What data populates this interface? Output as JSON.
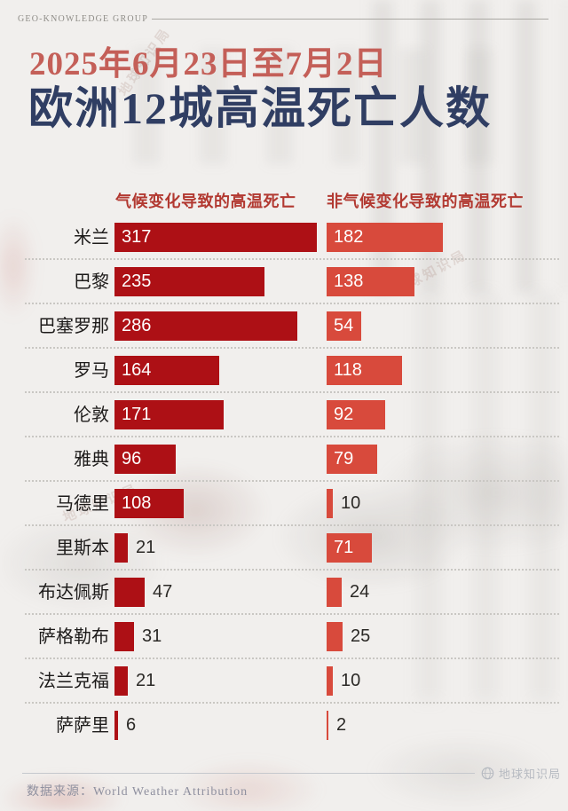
{
  "brand": {
    "name": "GEO-KNOWLEDGE GROUP"
  },
  "title": {
    "date_line": "2025年6月23日至7月2日",
    "main_line": "欧洲12城高温死亡人数"
  },
  "chart_data": {
    "type": "bar",
    "orientation": "horizontal",
    "title": "欧洲12城高温死亡人数",
    "subtitle": "2025年6月23日至7月2日",
    "categories": [
      "米兰",
      "巴黎",
      "巴塞罗那",
      "罗马",
      "伦敦",
      "雅典",
      "马德里",
      "里斯本",
      "布达佩斯",
      "萨格勒布",
      "法兰克福",
      "萨萨里"
    ],
    "series": [
      {
        "name": "气候变化导致的高温死亡",
        "color": "#ad1015",
        "values": [
          317,
          235,
          286,
          164,
          171,
          96,
          108,
          21,
          47,
          31,
          21,
          6
        ]
      },
      {
        "name": "非气候变化导致的高温死亡",
        "color": "#d84a3c",
        "values": [
          182,
          138,
          54,
          118,
          92,
          79,
          10,
          71,
          24,
          25,
          10,
          2
        ]
      }
    ],
    "value_labels": "shown at bar start, moved outside bar when bar is too short",
    "grid": false,
    "legend_position": "top-as-column-headers",
    "xlim": [
      0,
      330
    ]
  },
  "watermark": {
    "text": "地球知识局"
  },
  "footer": {
    "source_label": "数据来源：World Weather Attribution",
    "publisher": "地球知识局",
    "logo": "globe-icon"
  },
  "colors": {
    "background": "#f1efed",
    "bar_climate": "#ad1015",
    "bar_non_climate": "#d84a3c",
    "title_date": "#c45f58",
    "title_main": "#303e63",
    "column_header": "#b23931",
    "bar_value_inside": "#ffffff",
    "bar_value_outside": "#2b2926"
  }
}
